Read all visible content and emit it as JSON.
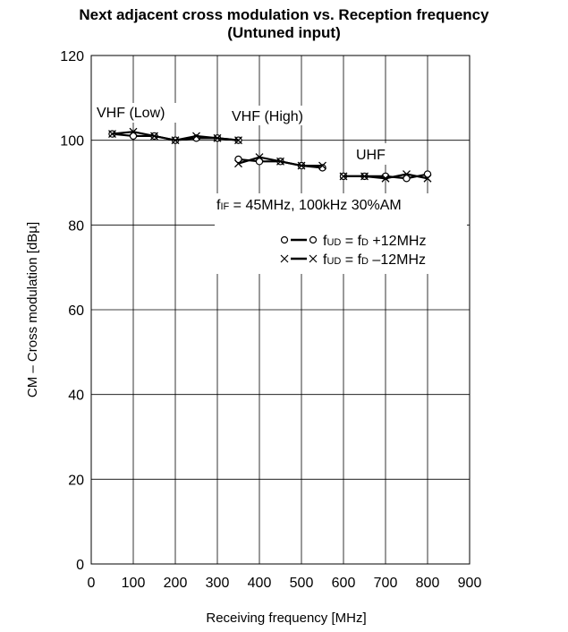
{
  "chart_data": {
    "type": "line",
    "title": "Next adjacent cross modulation vs. Reception frequency",
    "subtitle": "(Untuned input)",
    "xlabel": "Receiving frequency [MHz]",
    "ylabel": "CM – Cross modulation [dBµ]",
    "xlim": [
      0,
      900
    ],
    "ylim": [
      0,
      120
    ],
    "xticks": [
      0,
      100,
      200,
      300,
      400,
      500,
      600,
      700,
      800,
      900
    ],
    "yticks": [
      0,
      20,
      40,
      60,
      80,
      100,
      120
    ],
    "grid": true,
    "bands": [
      {
        "label": "VHF (Low)",
        "range": [
          50,
          350
        ]
      },
      {
        "label": "VHF (High)",
        "range": [
          350,
          550
        ]
      },
      {
        "label": "UHF",
        "range": [
          600,
          800
        ]
      }
    ],
    "series": [
      {
        "name": "fUD = fD +12MHz",
        "marker": "circle",
        "segments": [
          {
            "x": [
              50,
              100,
              150,
              200,
              250,
              300,
              350
            ],
            "y": [
              101.5,
              101,
              101,
              100,
              100.5,
              100.5,
              100
            ]
          },
          {
            "x": [
              350,
              400,
              450,
              500,
              550
            ],
            "y": [
              95.5,
              95,
              95,
              94,
              93.5
            ]
          },
          {
            "x": [
              600,
              650,
              700,
              750,
              800
            ],
            "y": [
              91.5,
              91.5,
              91.5,
              91,
              92
            ]
          }
        ]
      },
      {
        "name": "fUD = fD –12MHz",
        "marker": "x",
        "segments": [
          {
            "x": [
              50,
              100,
              150,
              200,
              250,
              300,
              350
            ],
            "y": [
              101.5,
              102,
              101,
              100,
              101,
              100.5,
              100
            ]
          },
          {
            "x": [
              350,
              400,
              450,
              500,
              550
            ],
            "y": [
              94.5,
              96,
              95,
              94,
              94
            ]
          },
          {
            "x": [
              600,
              650,
              700,
              750,
              800
            ],
            "y": [
              91.5,
              91.5,
              91,
              92,
              91
            ]
          }
        ]
      }
    ],
    "annotations": {
      "if_base": "f",
      "if_sub": "IF",
      "if_rest": " = 45MHz, 100kHz   30%AM",
      "legend_fUD": "f",
      "legend_UD": "UD",
      "legend_eq": " = f",
      "legend_D": "D",
      "legend_plus": " +12MHz",
      "legend_minus": " –12MHz"
    }
  }
}
